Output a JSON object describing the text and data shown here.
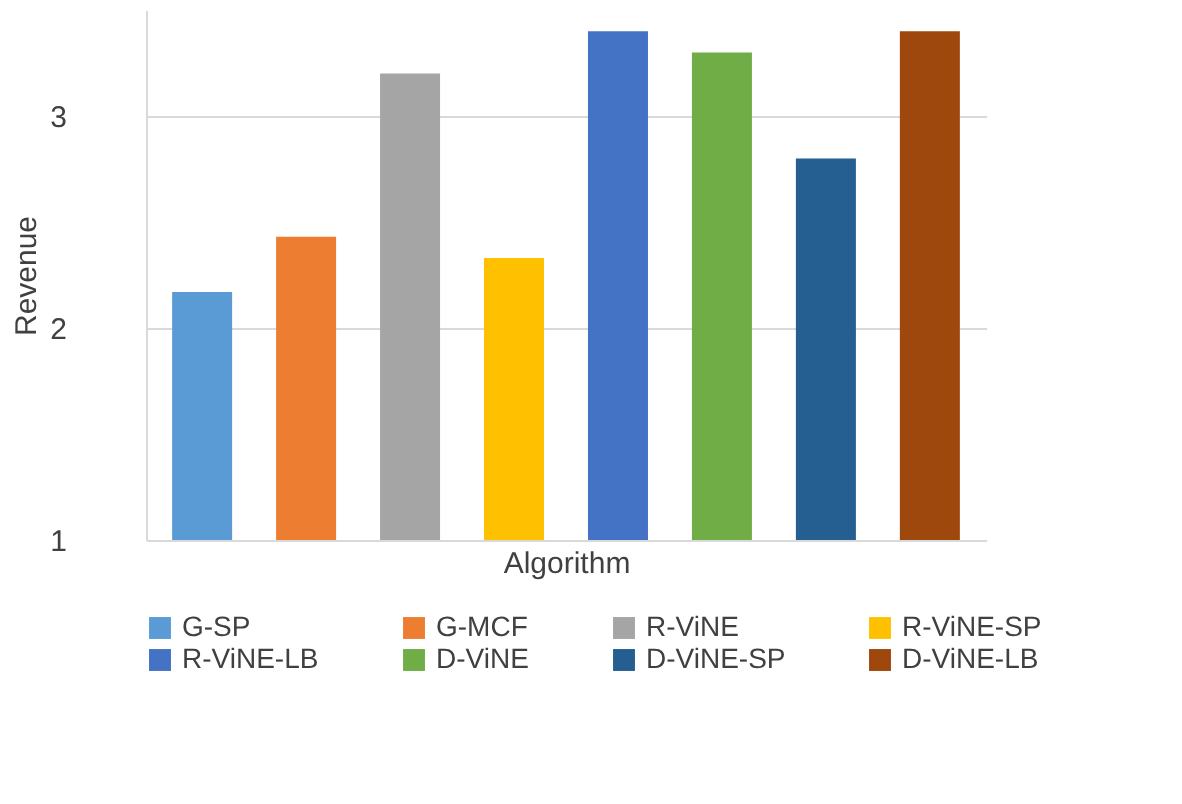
{
  "chart_data": {
    "type": "bar",
    "xlabel": "Algorithm",
    "ylabel": "Revenue",
    "categories": [
      null,
      null,
      null,
      null,
      null,
      null,
      null,
      null
    ],
    "series": [
      {
        "name": "G-SP",
        "color": "#5b9bd5",
        "values": [
          2.17,
          null,
          null,
          null,
          null,
          null,
          null,
          null
        ]
      },
      {
        "name": "G-MCF",
        "color": "#ed7d31",
        "values": [
          null,
          2.43,
          null,
          null,
          null,
          null,
          null,
          null
        ]
      },
      {
        "name": "R-ViNE",
        "color": "#a5a5a5",
        "values": [
          null,
          null,
          3.2,
          null,
          null,
          null,
          null,
          null
        ]
      },
      {
        "name": "R-ViNE-SP",
        "color": "#ffc000",
        "values": [
          null,
          null,
          null,
          2.33,
          null,
          null,
          null,
          null
        ]
      },
      {
        "name": "R-ViNE-LB",
        "color": "#4472c4",
        "values": [
          null,
          null,
          null,
          null,
          3.4,
          null,
          null,
          null
        ]
      },
      {
        "name": "D-ViNE",
        "color": "#70ad47",
        "values": [
          null,
          null,
          null,
          null,
          null,
          3.3,
          null,
          null
        ]
      },
      {
        "name": "D-ViNE-SP",
        "color": "#255e91",
        "values": [
          null,
          null,
          null,
          null,
          null,
          null,
          2.8,
          null
        ]
      },
      {
        "name": "D-ViNE-LB",
        "color": "#9e480e",
        "values": [
          null,
          null,
          null,
          null,
          null,
          null,
          null,
          3.4
        ]
      }
    ],
    "ylim": [
      1,
      3.5
    ],
    "yticks": [
      1,
      2,
      3
    ],
    "grid": "y",
    "legend": "bottom",
    "tick_labels": "y"
  }
}
